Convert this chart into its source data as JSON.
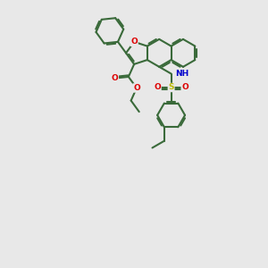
{
  "bg_color": "#e8e8e8",
  "bond_color": "#3a6a3a",
  "bond_width": 1.5,
  "atom_colors": {
    "O": "#dd0000",
    "N": "#0000cc",
    "S": "#bbbb00",
    "H": "#666666"
  },
  "figsize": [
    3.0,
    3.0
  ],
  "dpi": 100,
  "BL": 0.52
}
